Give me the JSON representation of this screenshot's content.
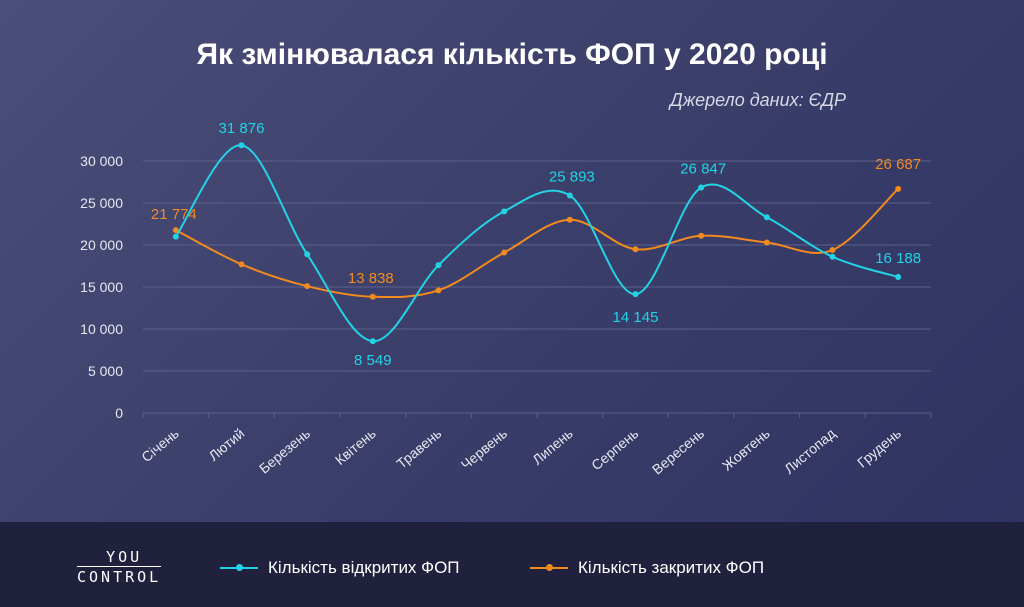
{
  "title": "Як змінювалася кількість ФОП у 2020 році",
  "subtitle": "Джерело даних: ЄДР",
  "logo": {
    "line1": "YOU",
    "line2": "CONTROL"
  },
  "colors": {
    "opened": "#22d3e6",
    "closed": "#f28a1e",
    "grid": "#5c608a",
    "axis_text": "#e6e7f0"
  },
  "chart_data": {
    "type": "line",
    "categories": [
      "Січень",
      "Лютий",
      "Березень",
      "Квітень",
      "Травень",
      "Червень",
      "Липень",
      "Серпень",
      "Вересень",
      "Жовтень",
      "Листопад",
      "Грудень"
    ],
    "ylim": [
      0,
      30000
    ],
    "yticks": [
      0,
      5000,
      10000,
      15000,
      20000,
      25000,
      30000
    ],
    "ytick_labels": [
      "0",
      "5 000",
      "10 000",
      "15 000",
      "20 000",
      "25 000",
      "30 000"
    ],
    "grid": true,
    "legend_position": "bottom",
    "series": [
      {
        "name": "Кількість відкритих ФОП",
        "values": [
          21000,
          31876,
          18900,
          8549,
          17600,
          24000,
          25893,
          14145,
          26847,
          23300,
          18600,
          16188
        ],
        "data_labels": [
          null,
          "31 876",
          null,
          "8 549",
          null,
          null,
          "25 893",
          "14 145",
          "26 847",
          null,
          null,
          "16 188"
        ]
      },
      {
        "name": "Кількість закритих ФОП",
        "values": [
          21774,
          17700,
          15100,
          13838,
          14600,
          19100,
          23000,
          19500,
          21100,
          20300,
          19400,
          26687
        ],
        "data_labels": [
          "21 774",
          null,
          null,
          "13 838",
          null,
          null,
          null,
          null,
          null,
          null,
          null,
          "26 687"
        ]
      }
    ]
  }
}
